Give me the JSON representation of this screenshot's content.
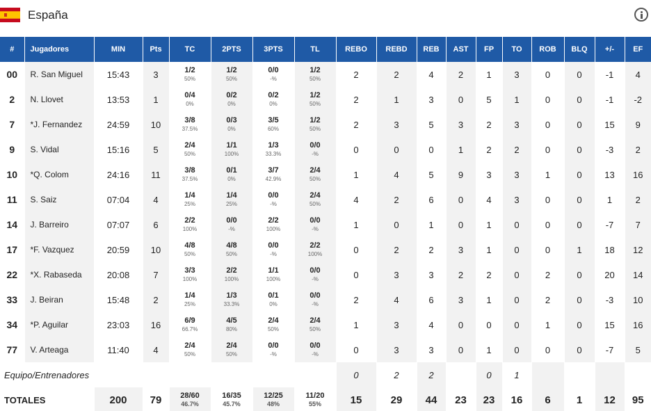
{
  "team": {
    "name": "España",
    "flag_colors": {
      "red": "#c60b1e",
      "yellow": "#ffc400"
    }
  },
  "theme": {
    "header_bg": "#1f5aa6",
    "header_text": "#ffffff",
    "stripe": "#f2f2f2"
  },
  "columns": [
    "#",
    "Jugadores",
    "MIN",
    "Pts",
    "TC",
    "2PTS",
    "3PTS",
    "TL",
    "REBO",
    "REBD",
    "REB",
    "AST",
    "FP",
    "TO",
    "ROB",
    "BLQ",
    "+/-",
    "EF"
  ],
  "players": [
    {
      "num": "00",
      "name": "R. San Miguel",
      "min": "15:43",
      "pts": "3",
      "tc": "1/2",
      "tc_pct": "50%",
      "p2": "1/2",
      "p2_pct": "50%",
      "p3": "0/0",
      "p3_pct": "-%",
      "tl": "1/2",
      "tl_pct": "50%",
      "rebo": "2",
      "rebd": "2",
      "reb": "4",
      "ast": "2",
      "fp": "1",
      "to": "3",
      "rob": "0",
      "blq": "0",
      "pm": "-1",
      "ef": "4"
    },
    {
      "num": "2",
      "name": "N. Llovet",
      "min": "13:53",
      "pts": "1",
      "tc": "0/4",
      "tc_pct": "0%",
      "p2": "0/2",
      "p2_pct": "0%",
      "p3": "0/2",
      "p3_pct": "0%",
      "tl": "1/2",
      "tl_pct": "50%",
      "rebo": "2",
      "rebd": "1",
      "reb": "3",
      "ast": "0",
      "fp": "5",
      "to": "1",
      "rob": "0",
      "blq": "0",
      "pm": "-1",
      "ef": "-2"
    },
    {
      "num": "7",
      "name": "*J. Fernandez",
      "min": "24:59",
      "pts": "10",
      "tc": "3/8",
      "tc_pct": "37.5%",
      "p2": "0/3",
      "p2_pct": "0%",
      "p3": "3/5",
      "p3_pct": "60%",
      "tl": "1/2",
      "tl_pct": "50%",
      "rebo": "2",
      "rebd": "3",
      "reb": "5",
      "ast": "3",
      "fp": "2",
      "to": "3",
      "rob": "0",
      "blq": "0",
      "pm": "15",
      "ef": "9"
    },
    {
      "num": "9",
      "name": "S. Vidal",
      "min": "15:16",
      "pts": "5",
      "tc": "2/4",
      "tc_pct": "50%",
      "p2": "1/1",
      "p2_pct": "100%",
      "p3": "1/3",
      "p3_pct": "33.3%",
      "tl": "0/0",
      "tl_pct": "-%",
      "rebo": "0",
      "rebd": "0",
      "reb": "0",
      "ast": "1",
      "fp": "2",
      "to": "2",
      "rob": "0",
      "blq": "0",
      "pm": "-3",
      "ef": "2"
    },
    {
      "num": "10",
      "name": "*Q. Colom",
      "min": "24:16",
      "pts": "11",
      "tc": "3/8",
      "tc_pct": "37.5%",
      "p2": "0/1",
      "p2_pct": "0%",
      "p3": "3/7",
      "p3_pct": "42.9%",
      "tl": "2/4",
      "tl_pct": "50%",
      "rebo": "1",
      "rebd": "4",
      "reb": "5",
      "ast": "9",
      "fp": "3",
      "to": "3",
      "rob": "1",
      "blq": "0",
      "pm": "13",
      "ef": "16"
    },
    {
      "num": "11",
      "name": "S. Saiz",
      "min": "07:04",
      "pts": "4",
      "tc": "1/4",
      "tc_pct": "25%",
      "p2": "1/4",
      "p2_pct": "25%",
      "p3": "0/0",
      "p3_pct": "-%",
      "tl": "2/4",
      "tl_pct": "50%",
      "rebo": "4",
      "rebd": "2",
      "reb": "6",
      "ast": "0",
      "fp": "4",
      "to": "3",
      "rob": "0",
      "blq": "0",
      "pm": "1",
      "ef": "2"
    },
    {
      "num": "14",
      "name": "J. Barreiro",
      "min": "07:07",
      "pts": "6",
      "tc": "2/2",
      "tc_pct": "100%",
      "p2": "0/0",
      "p2_pct": "-%",
      "p3": "2/2",
      "p3_pct": "100%",
      "tl": "0/0",
      "tl_pct": "-%",
      "rebo": "1",
      "rebd": "0",
      "reb": "1",
      "ast": "0",
      "fp": "1",
      "to": "0",
      "rob": "0",
      "blq": "0",
      "pm": "-7",
      "ef": "7"
    },
    {
      "num": "17",
      "name": "*F. Vazquez",
      "min": "20:59",
      "pts": "10",
      "tc": "4/8",
      "tc_pct": "50%",
      "p2": "4/8",
      "p2_pct": "50%",
      "p3": "0/0",
      "p3_pct": "-%",
      "tl": "2/2",
      "tl_pct": "100%",
      "rebo": "0",
      "rebd": "2",
      "reb": "2",
      "ast": "3",
      "fp": "1",
      "to": "0",
      "rob": "0",
      "blq": "1",
      "pm": "18",
      "ef": "12"
    },
    {
      "num": "22",
      "name": "*X. Rabaseda",
      "min": "20:08",
      "pts": "7",
      "tc": "3/3",
      "tc_pct": "100%",
      "p2": "2/2",
      "p2_pct": "100%",
      "p3": "1/1",
      "p3_pct": "100%",
      "tl": "0/0",
      "tl_pct": "-%",
      "rebo": "0",
      "rebd": "3",
      "reb": "3",
      "ast": "2",
      "fp": "2",
      "to": "0",
      "rob": "2",
      "blq": "0",
      "pm": "20",
      "ef": "14"
    },
    {
      "num": "33",
      "name": "J. Beiran",
      "min": "15:48",
      "pts": "2",
      "tc": "1/4",
      "tc_pct": "25%",
      "p2": "1/3",
      "p2_pct": "33.3%",
      "p3": "0/1",
      "p3_pct": "0%",
      "tl": "0/0",
      "tl_pct": "-%",
      "rebo": "2",
      "rebd": "4",
      "reb": "6",
      "ast": "3",
      "fp": "1",
      "to": "0",
      "rob": "2",
      "blq": "0",
      "pm": "-3",
      "ef": "10"
    },
    {
      "num": "34",
      "name": "*P. Aguilar",
      "min": "23:03",
      "pts": "16",
      "tc": "6/9",
      "tc_pct": "66.7%",
      "p2": "4/5",
      "p2_pct": "80%",
      "p3": "2/4",
      "p3_pct": "50%",
      "tl": "2/4",
      "tl_pct": "50%",
      "rebo": "1",
      "rebd": "3",
      "reb": "4",
      "ast": "0",
      "fp": "0",
      "to": "0",
      "rob": "1",
      "blq": "0",
      "pm": "15",
      "ef": "16"
    },
    {
      "num": "77",
      "name": "V. Arteaga",
      "min": "11:40",
      "pts": "4",
      "tc": "2/4",
      "tc_pct": "50%",
      "p2": "2/4",
      "p2_pct": "50%",
      "p3": "0/0",
      "p3_pct": "-%",
      "tl": "0/0",
      "tl_pct": "-%",
      "rebo": "0",
      "rebd": "3",
      "reb": "3",
      "ast": "0",
      "fp": "1",
      "to": "0",
      "rob": "0",
      "blq": "0",
      "pm": "-7",
      "ef": "5"
    }
  ],
  "staff": {
    "label": "Equipo/Entrenadores",
    "rebo": "0",
    "rebd": "2",
    "reb": "2",
    "fp": "0",
    "to": "1"
  },
  "totals": {
    "label": "TOTALES",
    "min": "200",
    "pts": "79",
    "tc": "28/60",
    "tc_pct": "46.7%",
    "p2": "16/35",
    "p2_pct": "45.7%",
    "p3": "12/25",
    "p3_pct": "48%",
    "tl": "11/20",
    "tl_pct": "55%",
    "rebo": "15",
    "rebd": "29",
    "reb": "44",
    "ast": "23",
    "fp": "23",
    "to": "16",
    "rob": "6",
    "blq": "1",
    "pm": "12",
    "ef": "95"
  }
}
